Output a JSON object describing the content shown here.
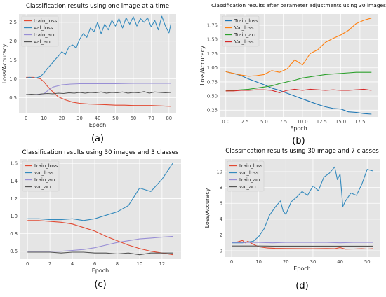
{
  "chart_data": [
    {
      "type": "line",
      "caption": "(a)",
      "title": "Classification results using one image at a time",
      "xlabel": "Epoch",
      "ylabel": "Loss/Accuracy",
      "xlim": [
        -4,
        84
      ],
      "ylim": [
        0.08,
        2.72
      ],
      "xticks": [
        0,
        10,
        20,
        30,
        40,
        50,
        60,
        70,
        80
      ],
      "yticks": [
        0.5,
        1.0,
        1.5,
        2.0,
        2.5
      ],
      "ytick_labels": [
        "0.5",
        "1.0",
        "1.5",
        "2.0",
        "2.5"
      ],
      "grid": true,
      "legend_position": "upper-left",
      "series": [
        {
          "name": "train_loss",
          "color": "#e24a33",
          "x": [
            0,
            4,
            8,
            10,
            12,
            15,
            18,
            22,
            26,
            30,
            35,
            40,
            45,
            50,
            55,
            60,
            65,
            70,
            75,
            80,
            81
          ],
          "y": [
            1.04,
            1.04,
            1.0,
            0.92,
            0.8,
            0.65,
            0.52,
            0.44,
            0.38,
            0.35,
            0.33,
            0.32,
            0.31,
            0.3,
            0.3,
            0.29,
            0.29,
            0.29,
            0.28,
            0.27,
            0.27
          ]
        },
        {
          "name": "val_loss",
          "color": "#348abd",
          "x": [
            0,
            2,
            4,
            6,
            8,
            10,
            12,
            14,
            16,
            18,
            20,
            22,
            24,
            26,
            28,
            30,
            32,
            34,
            36,
            38,
            40,
            42,
            44,
            46,
            48,
            50,
            52,
            54,
            56,
            58,
            60,
            62,
            64,
            66,
            68,
            70,
            72,
            74,
            76,
            78,
            80,
            81
          ],
          "y": [
            1.02,
            1.04,
            1.02,
            1.03,
            1.06,
            1.15,
            1.28,
            1.38,
            1.5,
            1.6,
            1.72,
            1.65,
            1.85,
            1.9,
            1.82,
            2.05,
            2.2,
            2.1,
            2.35,
            2.25,
            2.5,
            2.2,
            2.45,
            2.3,
            2.55,
            2.4,
            2.6,
            2.35,
            2.62,
            2.45,
            2.65,
            2.4,
            2.6,
            2.5,
            2.62,
            2.38,
            2.55,
            2.3,
            2.66,
            2.4,
            2.22,
            2.45
          ]
        },
        {
          "name": "train_acc",
          "color": "#988ed5",
          "x": [
            0,
            5,
            10,
            12,
            15,
            20,
            25,
            30,
            40,
            50,
            60,
            70,
            81
          ],
          "y": [
            0.58,
            0.58,
            0.6,
            0.68,
            0.78,
            0.84,
            0.86,
            0.87,
            0.87,
            0.87,
            0.88,
            0.88,
            0.88
          ]
        },
        {
          "name": "val_acc",
          "color": "#555555",
          "x": [
            0,
            3,
            6,
            9,
            12,
            15,
            18,
            21,
            24,
            27,
            30,
            33,
            36,
            39,
            42,
            45,
            48,
            51,
            54,
            57,
            60,
            63,
            66,
            69,
            72,
            75,
            78,
            81
          ],
          "y": [
            0.58,
            0.59,
            0.58,
            0.6,
            0.61,
            0.6,
            0.62,
            0.61,
            0.63,
            0.62,
            0.64,
            0.62,
            0.64,
            0.63,
            0.65,
            0.62,
            0.64,
            0.63,
            0.65,
            0.62,
            0.64,
            0.63,
            0.66,
            0.62,
            0.65,
            0.64,
            0.63,
            0.64
          ]
        }
      ]
    },
    {
      "type": "line",
      "caption": "(b)",
      "title": "Classification results after parameter adjustments using 30 images",
      "xlabel": "Epoch",
      "ylabel": "Loss/Accuracy",
      "xlim": [
        -0.8,
        19.8
      ],
      "ylim": [
        0.13,
        1.95
      ],
      "xticks": [
        0,
        2.5,
        5,
        7.5,
        10,
        12.5,
        15,
        17.5
      ],
      "xtick_labels": [
        "0.0",
        "2.5",
        "5.0",
        "7.5",
        "10.0",
        "12.5",
        "15.0",
        "17.5"
      ],
      "yticks": [
        0.25,
        0.5,
        0.75,
        1.0,
        1.25,
        1.5,
        1.75
      ],
      "ytick_labels": [
        "0.25",
        "0.50",
        "0.75",
        "1.00",
        "1.25",
        "1.50",
        "1.75"
      ],
      "grid": true,
      "legend_position": "upper-left",
      "series": [
        {
          "name": "Train_loss",
          "color": "#1f77b4",
          "x": [
            0,
            1,
            2,
            3,
            4,
            5,
            6,
            7,
            8,
            9,
            10,
            11,
            12,
            13,
            14,
            15,
            16,
            17,
            18,
            19
          ],
          "y": [
            0.93,
            0.9,
            0.86,
            0.8,
            0.75,
            0.7,
            0.64,
            0.6,
            0.55,
            0.5,
            0.45,
            0.4,
            0.35,
            0.31,
            0.28,
            0.27,
            0.22,
            0.21,
            0.19,
            0.18
          ]
        },
        {
          "name": "Val_loss",
          "color": "#ff7f0e",
          "x": [
            0,
            1,
            2,
            3,
            4,
            5,
            6,
            7,
            8,
            9,
            10,
            11,
            12,
            13,
            14,
            15,
            16,
            17,
            18,
            19
          ],
          "y": [
            0.93,
            0.9,
            0.87,
            0.85,
            0.86,
            0.88,
            0.95,
            0.92,
            0.98,
            1.14,
            1.05,
            1.25,
            1.32,
            1.45,
            1.52,
            1.58,
            1.66,
            1.78,
            1.84,
            1.88
          ]
        },
        {
          "name": "Train_acc",
          "color": "#2ca02c",
          "x": [
            0,
            1,
            2,
            3,
            4,
            5,
            6,
            7,
            8,
            9,
            10,
            11,
            12,
            13,
            14,
            15,
            16,
            17,
            18,
            19
          ],
          "y": [
            0.59,
            0.6,
            0.61,
            0.62,
            0.64,
            0.66,
            0.68,
            0.72,
            0.75,
            0.78,
            0.82,
            0.84,
            0.86,
            0.88,
            0.89,
            0.9,
            0.91,
            0.92,
            0.92,
            0.92
          ]
        },
        {
          "name": "Val_loss",
          "color": "#d62728",
          "x": [
            0,
            1,
            2,
            3,
            4,
            5,
            6,
            7,
            8,
            9,
            10,
            11,
            12,
            13,
            14,
            15,
            16,
            17,
            18,
            19
          ],
          "y": [
            0.59,
            0.59,
            0.6,
            0.6,
            0.61,
            0.61,
            0.6,
            0.56,
            0.6,
            0.62,
            0.6,
            0.62,
            0.61,
            0.6,
            0.61,
            0.6,
            0.6,
            0.61,
            0.62,
            0.6
          ]
        }
      ]
    },
    {
      "type": "line",
      "caption": "(c)",
      "title": "Classification results using 30 images and 3 classes",
      "xlabel": "Epoch",
      "ylabel": "",
      "xlim": [
        -0.7,
        13.7
      ],
      "ylim": [
        0.51,
        1.65
      ],
      "xticks": [
        0,
        2,
        4,
        6,
        8,
        10,
        12
      ],
      "yticks": [
        0.6,
        0.8,
        1.0,
        1.2,
        1.4,
        1.6
      ],
      "ytick_labels": [
        "0.6",
        "0.8",
        "1.0",
        "1.2",
        "1.4",
        "1.6"
      ],
      "grid": true,
      "legend_position": "upper-left",
      "series": [
        {
          "name": "train_loss",
          "color": "#e24a33",
          "x": [
            0,
            1,
            2,
            3,
            4,
            5,
            6,
            7,
            8,
            9,
            10,
            11,
            12,
            13
          ],
          "y": [
            0.95,
            0.95,
            0.94,
            0.93,
            0.91,
            0.87,
            0.83,
            0.77,
            0.72,
            0.67,
            0.63,
            0.6,
            0.58,
            0.56
          ]
        },
        {
          "name": "val_loss",
          "color": "#348abd",
          "x": [
            0,
            1,
            2,
            3,
            4,
            5,
            6,
            7,
            8,
            9,
            10,
            11,
            12,
            13
          ],
          "y": [
            0.97,
            0.97,
            0.96,
            0.96,
            0.97,
            0.95,
            0.97,
            1.01,
            1.05,
            1.12,
            1.32,
            1.28,
            1.42,
            1.61
          ]
        },
        {
          "name": "train_acc",
          "color": "#988ed5",
          "x": [
            0,
            1,
            2,
            3,
            4,
            5,
            6,
            7,
            8,
            9,
            10,
            11,
            12,
            13
          ],
          "y": [
            0.6,
            0.6,
            0.6,
            0.6,
            0.61,
            0.62,
            0.64,
            0.67,
            0.7,
            0.72,
            0.74,
            0.75,
            0.76,
            0.77
          ]
        },
        {
          "name": "val_acc",
          "color": "#555555",
          "x": [
            0,
            1,
            2,
            3,
            4,
            5,
            6,
            7,
            8,
            9,
            10,
            11,
            12,
            13
          ],
          "y": [
            0.59,
            0.59,
            0.59,
            0.58,
            0.59,
            0.59,
            0.58,
            0.58,
            0.57,
            0.58,
            0.56,
            0.58,
            0.58,
            0.58
          ]
        }
      ]
    },
    {
      "type": "line",
      "caption": "(d)",
      "title": "Classification results using 30 image and 7 classes",
      "xlabel": "Epoch",
      "ylabel": "Loss/Accuracy",
      "xlim": [
        -2.6,
        54.6
      ],
      "ylim": [
        -0.8,
        11.6
      ],
      "xticks": [
        0,
        10,
        20,
        30,
        40,
        50
      ],
      "yticks": [
        0,
        2,
        4,
        6,
        8,
        10
      ],
      "ytick_labels": [
        "0",
        "2",
        "4",
        "6",
        "8",
        "10"
      ],
      "grid": true,
      "legend_position": "upper-left",
      "series": [
        {
          "name": "train_loss",
          "color": "#e24a33",
          "x": [
            0,
            2,
            4,
            5,
            6,
            8,
            10,
            13,
            16,
            20,
            25,
            30,
            35,
            38,
            40,
            42,
            45,
            48,
            50,
            52
          ],
          "y": [
            1.1,
            1.1,
            1.3,
            1.0,
            1.2,
            0.8,
            0.5,
            0.35,
            0.3,
            0.28,
            0.27,
            0.26,
            0.28,
            0.25,
            0.4,
            0.2,
            0.22,
            0.25,
            0.22,
            0.25
          ]
        },
        {
          "name": "val_loss",
          "color": "#348abd",
          "x": [
            0,
            2,
            4,
            6,
            8,
            10,
            12,
            14,
            16,
            18,
            19,
            20,
            22,
            24,
            26,
            28,
            30,
            32,
            34,
            36,
            38,
            39,
            40,
            41,
            42,
            44,
            46,
            48,
            50,
            52
          ],
          "y": [
            1.0,
            1.0,
            1.0,
            1.1,
            1.2,
            1.8,
            2.8,
            4.5,
            5.5,
            6.3,
            5.0,
            4.6,
            6.2,
            6.8,
            7.5,
            7.0,
            8.2,
            7.6,
            9.3,
            9.8,
            10.6,
            9.0,
            9.7,
            5.6,
            6.3,
            7.3,
            7.0,
            8.4,
            10.3,
            10.1
          ]
        },
        {
          "name": "train_acc",
          "color": "#988ed5",
          "x": [
            0,
            5,
            10,
            15,
            20,
            25,
            30,
            35,
            40,
            45,
            50,
            52
          ],
          "y": [
            1.05,
            1.05,
            1.05,
            1.0,
            1.05,
            1.05,
            1.05,
            1.05,
            1.0,
            1.05,
            1.05,
            1.05
          ]
        },
        {
          "name": "val_acc",
          "color": "#555555",
          "x": [
            0,
            5,
            10,
            15,
            20,
            25,
            30,
            35,
            40,
            45,
            50,
            52
          ],
          "y": [
            0.6,
            0.6,
            0.6,
            0.58,
            0.58,
            0.58,
            0.58,
            0.58,
            0.58,
            0.58,
            0.58,
            0.58
          ]
        }
      ]
    }
  ]
}
